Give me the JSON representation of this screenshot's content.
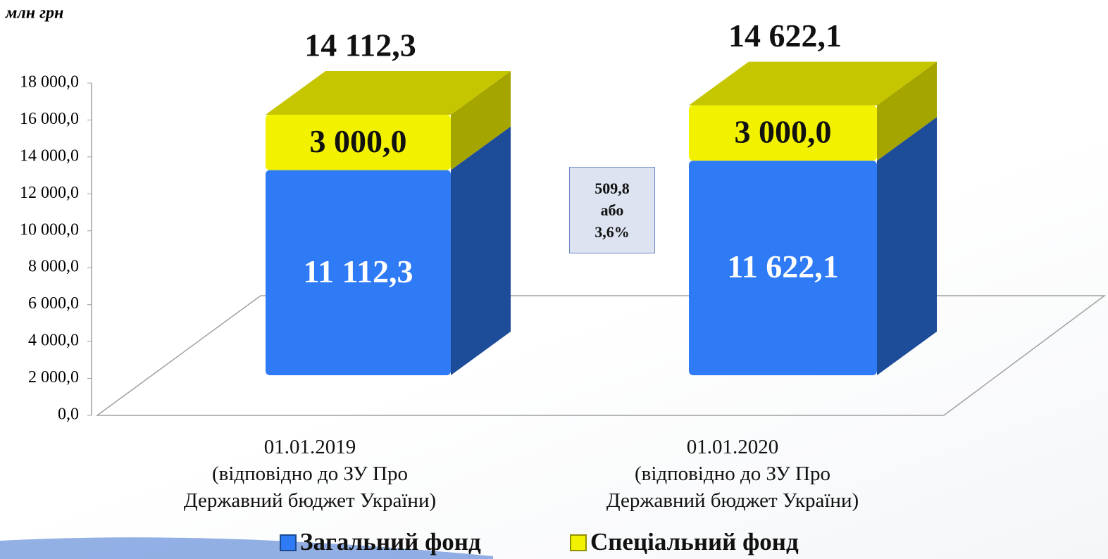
{
  "chart_data": {
    "type": "bar3d_stacked",
    "unit_label": "млн грн",
    "categories": [
      "01.01.2019\n(відповідно до ЗУ Про\nДержавний бюджет України)",
      "01.01.2020\n(відповідно до ЗУ Про\nДержавний бюджет України)"
    ],
    "series": [
      {
        "name": "Загальний фонд",
        "color": "#2f7bf5",
        "values": [
          11112.3,
          11622.1
        ],
        "value_labels": [
          "11 112,3",
          "11 622,1"
        ]
      },
      {
        "name": "Спеціальний фонд",
        "color": "#f2f200",
        "values": [
          3000,
          3000
        ],
        "value_labels": [
          "3 000,0",
          "3 000,0"
        ]
      }
    ],
    "totals": {
      "values": [
        14112.3,
        14622.1
      ],
      "value_labels": [
        "14 112,3",
        "14 622,1"
      ]
    },
    "annotation": "509,8\nабо\n3,6%",
    "ylim": [
      0,
      18000
    ],
    "yticks": [
      {
        "value": 0,
        "label": "0,0"
      },
      {
        "value": 2000,
        "label": "2 000,0"
      },
      {
        "value": 4000,
        "label": "4 000,0"
      },
      {
        "value": 6000,
        "label": "6 000,0"
      },
      {
        "value": 8000,
        "label": "8 000,0"
      },
      {
        "value": 10000,
        "label": "10 000,0"
      },
      {
        "value": 12000,
        "label": "12 000,0"
      },
      {
        "value": 14000,
        "label": "14 000,0"
      },
      {
        "value": 16000,
        "label": "16 000,0"
      },
      {
        "value": 18000,
        "label": "18 000,0"
      }
    ],
    "legend": "bottom"
  }
}
